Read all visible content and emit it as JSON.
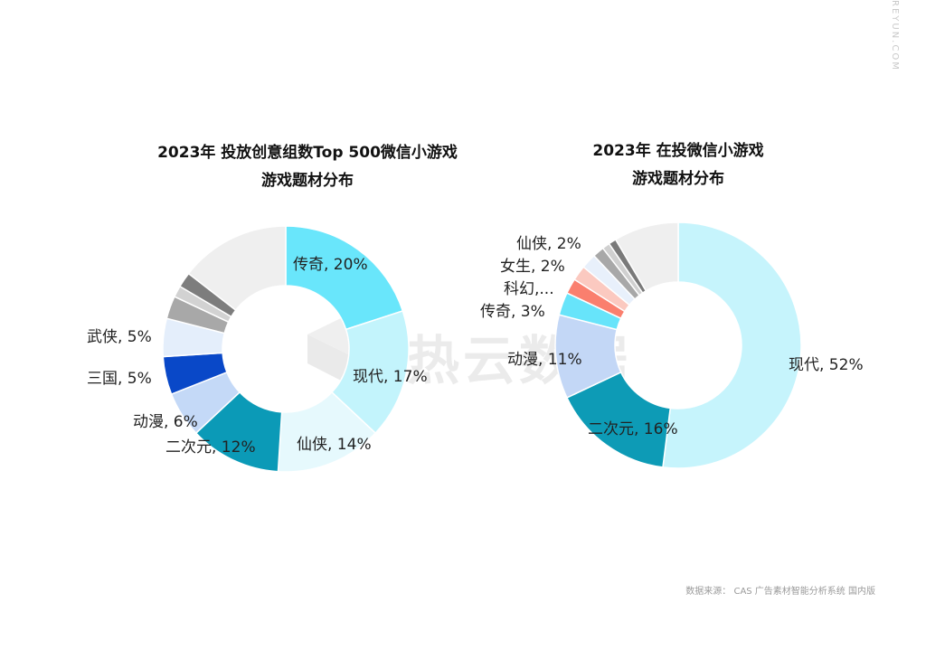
{
  "side_url": "REYUN.COM",
  "watermark": "热云数据",
  "footer": {
    "source": "数据来源： CAS 广告素材智能分析系统 国内版"
  },
  "chart_data": [
    {
      "type": "pie",
      "variant": "donut",
      "title": "2023年  投放创意组数Top  500微信小游戏",
      "subtitle": "游戏题材分布",
      "start_angle_deg": 0,
      "direction": "clockwise",
      "slices": [
        {
          "name": "传奇",
          "value": 20,
          "label": "传奇, 20%",
          "color": "#69e6fb"
        },
        {
          "name": "现代",
          "value": 17,
          "label": "现代, 17%",
          "color": "#c3f4fc"
        },
        {
          "name": "仙侠",
          "value": 14,
          "label": "仙侠, 14%",
          "color": "#e6f9fd"
        },
        {
          "name": "二次元",
          "value": 12,
          "label": "二次元, 12%",
          "color": "#0b9ab7"
        },
        {
          "name": "动漫",
          "value": 6,
          "label": "动漫, 6%",
          "color": "#c4d9f7"
        },
        {
          "name": "三国",
          "value": 5,
          "label": "三国, 5%",
          "color": "#0948c8"
        },
        {
          "name": "武侠",
          "value": 5,
          "label": "武侠, 5%",
          "color": "#e4eefb"
        },
        {
          "name": "其他1",
          "value": 3,
          "label": "",
          "color": "#a8a8a8"
        },
        {
          "name": "其他2",
          "value": 1.5,
          "label": "",
          "color": "#d2d2d2"
        },
        {
          "name": "其他3",
          "value": 2,
          "label": "",
          "color": "#7d7d7d"
        },
        {
          "name": "其他4",
          "value": 14.5,
          "label": "",
          "color": "#efefef"
        }
      ]
    },
    {
      "type": "pie",
      "variant": "donut",
      "title": "2023年  在投微信小游戏",
      "subtitle": "游戏题材分布",
      "start_angle_deg": 0,
      "direction": "clockwise",
      "slices": [
        {
          "name": "现代",
          "value": 52,
          "label": "现代, 52%",
          "color": "#c6f4fc"
        },
        {
          "name": "二次元",
          "value": 16,
          "label": "二次元, 16%",
          "color": "#0d9bb6"
        },
        {
          "name": "动漫",
          "value": 11,
          "label": "动漫, 11%",
          "color": "#c3d7f6"
        },
        {
          "name": "传奇",
          "value": 3,
          "label": "传奇, 3%",
          "color": "#67e4fa"
        },
        {
          "name": "科幻",
          "value": 2,
          "label": "科幻,...",
          "color": "#fa7f6e"
        },
        {
          "name": "女生",
          "value": 2,
          "label": "女生, 2%",
          "color": "#fbc9c0"
        },
        {
          "name": "仙侠",
          "value": 2,
          "label": "仙侠, 2%",
          "color": "#e8f0fb"
        },
        {
          "name": "其他1",
          "value": 1.5,
          "label": "",
          "color": "#a8a8a8"
        },
        {
          "name": "其他2",
          "value": 1,
          "label": "",
          "color": "#d0d0d0"
        },
        {
          "name": "其他3",
          "value": 1,
          "label": "",
          "color": "#7a7a7a"
        },
        {
          "name": "其他4",
          "value": 8.5,
          "label": "",
          "color": "#efefef"
        }
      ]
    }
  ]
}
